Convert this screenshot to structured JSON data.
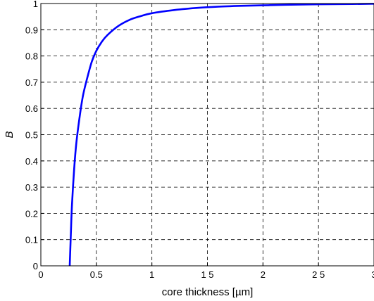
{
  "chart_data": {
    "type": "line",
    "title": "",
    "xlabel": "core thickness [µm]",
    "ylabel": "B",
    "xlim": [
      0,
      3
    ],
    "ylim": [
      0,
      1
    ],
    "x_ticks": [
      0,
      0.5,
      1,
      1.5,
      2,
      2.5,
      3
    ],
    "x_tick_labels": [
      "0",
      "0.5",
      "1",
      "1 5",
      "2",
      "2 5",
      "3"
    ],
    "y_ticks": [
      0,
      0.1,
      0.2,
      0.3,
      0.4,
      0.5,
      0.6,
      0.7,
      0.8,
      0.9,
      1
    ],
    "y_tick_labels": [
      "0",
      "0.1",
      "0.2",
      "0.3",
      "0.4",
      "0.5",
      "0.6",
      "0.7",
      "0.8",
      "0.9",
      "1"
    ],
    "grid": true,
    "grid_style": "dashed",
    "legend": null,
    "line_color": "#0000ff",
    "series": [
      {
        "x": [
          0.26,
          0.27,
          0.28,
          0.3,
          0.32,
          0.35,
          0.38,
          0.42,
          0.46,
          0.5,
          0.55,
          0.6,
          0.7,
          0.8,
          0.9,
          1.0,
          1.2,
          1.4,
          1.6,
          1.8,
          2.0,
          2.2,
          2.5,
          2.8,
          3.0
        ],
        "y": [
          0.0,
          0.12,
          0.23,
          0.37,
          0.47,
          0.57,
          0.65,
          0.72,
          0.78,
          0.82,
          0.855,
          0.88,
          0.915,
          0.938,
          0.952,
          0.963,
          0.975,
          0.983,
          0.988,
          0.991,
          0.993,
          0.995,
          0.997,
          0.998,
          0.999
        ]
      }
    ]
  }
}
